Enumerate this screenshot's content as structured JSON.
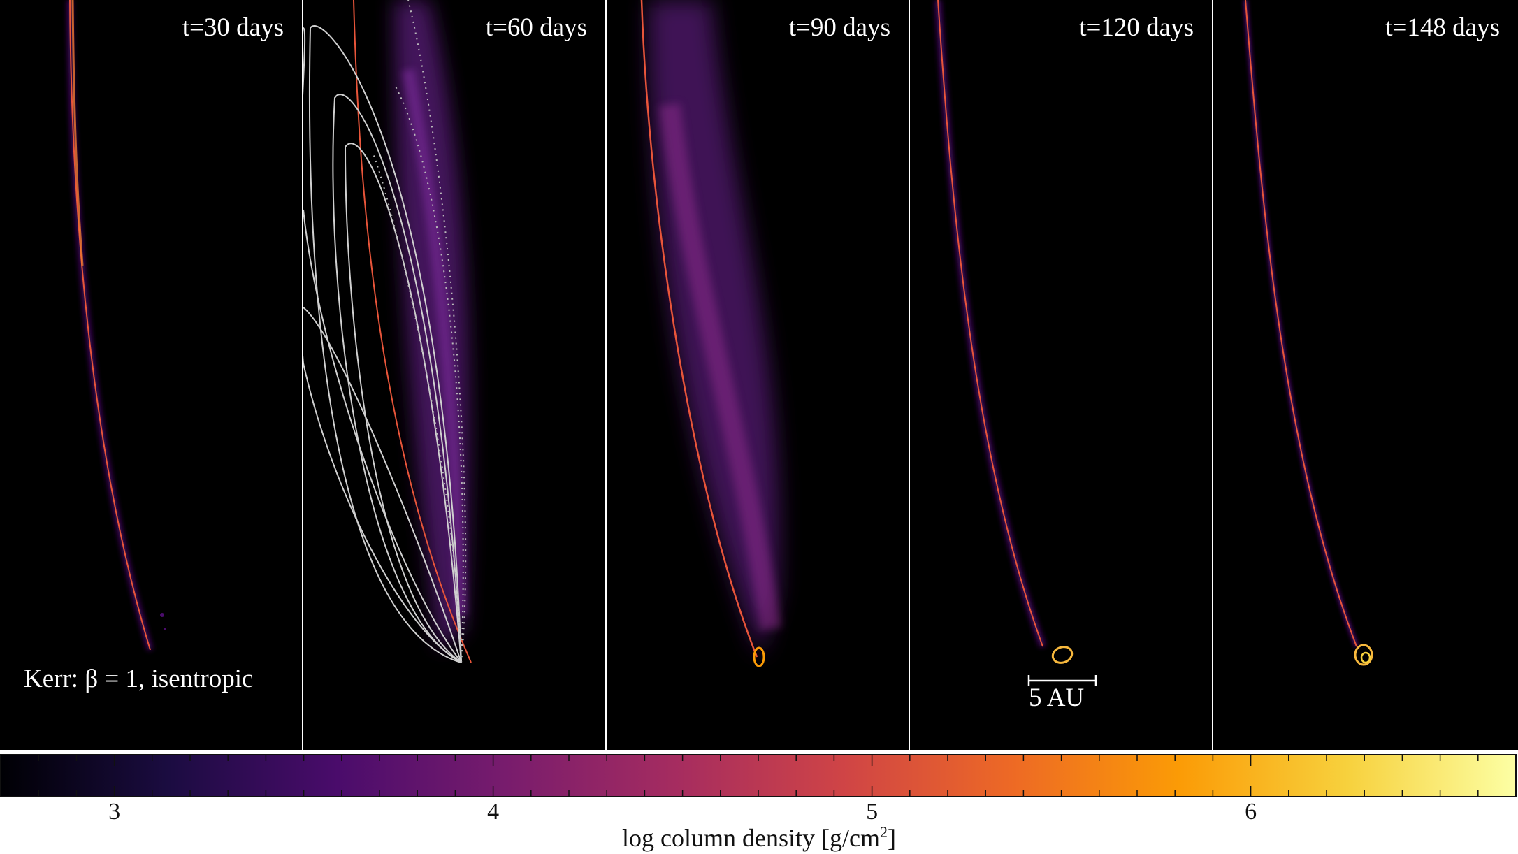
{
  "figure": {
    "panels": [
      {
        "time_label": "t=30 days"
      },
      {
        "time_label": "t=60 days"
      },
      {
        "time_label": "t=90 days"
      },
      {
        "time_label": "t=120 days"
      },
      {
        "time_label": "t=148 days"
      }
    ],
    "run_label": "Kerr: β = 1, isentropic",
    "scale_bar_label": "5 AU",
    "colorbar": {
      "label_prefix": "log column density [g/cm",
      "label_sup": "2",
      "label_suffix": "]",
      "tick_labels": [
        "3",
        "4",
        "5",
        "6"
      ],
      "tick_values": [
        3,
        4,
        5,
        6
      ],
      "range": [
        2.7,
        6.7
      ],
      "colormap": "inferno",
      "colormap_stops": [
        "#000004",
        "#1b0c41",
        "#4a0c6b",
        "#781c6d",
        "#a52c60",
        "#cf4446",
        "#ed6925",
        "#fb9b06",
        "#f7d13d",
        "#fcffa4"
      ]
    },
    "colors": {
      "background": "#000000",
      "stream_core": "#e8553a",
      "stream_halo": "#6a1a8a",
      "debris": "#7a2a9a",
      "orbit_lines": "#cccccc",
      "text": "#ffffff"
    }
  }
}
